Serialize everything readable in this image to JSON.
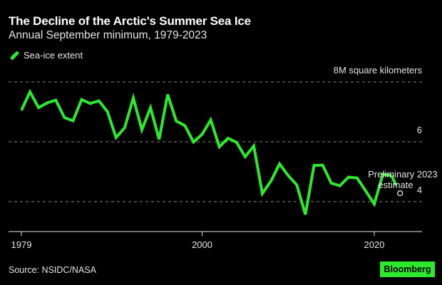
{
  "chart_data": {
    "type": "line",
    "title": "The Decline of the Arctic's Summer Sea Ice",
    "subtitle": "Annual September minimum, 1979-2023",
    "xlabel": "",
    "ylabel": "M square kilometers",
    "ylim": [
      3.1,
      8.0
    ],
    "xlim": [
      1979,
      2025
    ],
    "grid": true,
    "legend": {
      "placement": "top-left",
      "entries": [
        "Sea-ice extent"
      ]
    },
    "y_ticks": [
      {
        "value": 8,
        "label": "8M square kilometers"
      },
      {
        "value": 6,
        "label": "6"
      },
      {
        "value": 4,
        "label": "4"
      }
    ],
    "x_ticks": [
      {
        "value": 1979,
        "label": "1979"
      },
      {
        "value": 2000,
        "label": "2000"
      },
      {
        "value": 2020,
        "label": "2020"
      }
    ],
    "series": [
      {
        "name": "Sea-ice extent",
        "color": "#2ee82e",
        "x": [
          1979,
          1980,
          1981,
          1982,
          1983,
          1984,
          1985,
          1986,
          1987,
          1988,
          1989,
          1990,
          1991,
          1992,
          1993,
          1994,
          1995,
          1996,
          1997,
          1998,
          1999,
          2000,
          2001,
          2002,
          2003,
          2004,
          2005,
          2006,
          2007,
          2008,
          2009,
          2010,
          2011,
          2012,
          2013,
          2014,
          2015,
          2016,
          2017,
          2018,
          2019,
          2020,
          2021,
          2022
        ],
        "values": [
          7.05,
          7.67,
          7.14,
          7.3,
          7.39,
          6.81,
          6.7,
          7.41,
          7.28,
          7.37,
          7.01,
          6.14,
          6.47,
          7.47,
          6.4,
          7.14,
          6.08,
          7.58,
          6.69,
          6.54,
          5.99,
          6.25,
          6.73,
          5.83,
          6.12,
          5.98,
          5.5,
          5.86,
          4.27,
          4.69,
          5.26,
          4.87,
          4.56,
          3.57,
          5.21,
          5.22,
          4.62,
          4.53,
          4.82,
          4.79,
          4.36,
          3.92,
          4.92,
          4.87
        ]
      }
    ],
    "estimate_point": {
      "x": 2023,
      "value": 4.28
    },
    "annotations": [
      "Preliminary 2023",
      "estimate"
    ]
  },
  "source": "Source: NSIDC/NASA",
  "brand": "Bloomberg"
}
